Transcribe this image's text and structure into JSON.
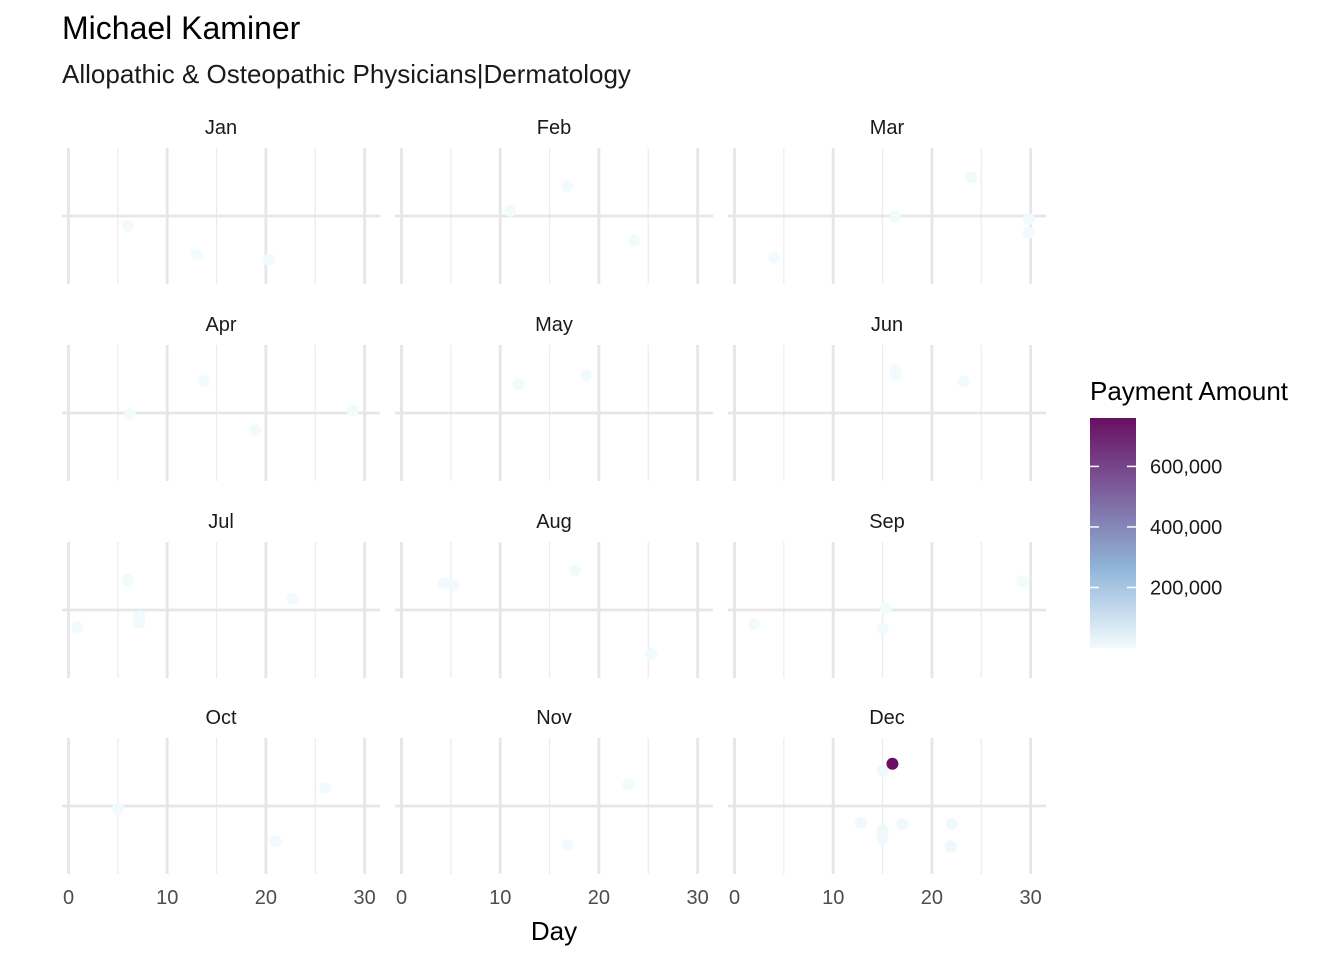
{
  "chart_data": {
    "type": "scatter",
    "title": "Michael Kaminer",
    "subtitle": "Allopathic & Osteopathic Physicians|Dermatology",
    "xlabel": "Day",
    "ylabel": "",
    "xlim": [
      0,
      31
    ],
    "x_ticks": [
      0,
      10,
      20,
      30
    ],
    "x_tick_labels": [
      "0",
      "10",
      "20",
      "30"
    ],
    "grid": true,
    "facet_layout": {
      "rows": 4,
      "cols": 3
    },
    "color_scale": {
      "title": "Payment Amount",
      "low_color": "#f2fbfd",
      "mid_color": "#8fb4d9",
      "high_color": "#6a0f62",
      "range": [
        0,
        760000
      ],
      "breaks": [
        200000,
        400000,
        600000
      ],
      "break_labels": [
        "200,000",
        "400,000",
        "600,000"
      ],
      "legend_position": "right"
    },
    "facets": [
      {
        "month": "Jan",
        "points": [
          {
            "day": 6,
            "y": -0.15,
            "amount": 1500
          },
          {
            "day": 13,
            "y": -0.6,
            "amount": 1200
          },
          {
            "day": 20.3,
            "y": -0.68,
            "amount": 1500
          }
        ]
      },
      {
        "month": "Feb",
        "points": [
          {
            "day": 11,
            "y": 0.08,
            "amount": 1500
          },
          {
            "day": 16.8,
            "y": 0.47,
            "amount": 1500
          },
          {
            "day": 23.6,
            "y": -0.38,
            "amount": 1500
          }
        ]
      },
      {
        "month": "Mar",
        "points": [
          {
            "day": 4,
            "y": -0.65,
            "amount": 1500
          },
          {
            "day": 16.3,
            "y": -0.01,
            "amount": 1500
          },
          {
            "day": 24,
            "y": 0.6,
            "amount": 1500
          },
          {
            "day": 29.8,
            "y": -0.05,
            "amount": 1500
          },
          {
            "day": 29.8,
            "y": -0.26,
            "amount": 1500
          }
        ]
      },
      {
        "month": "Apr",
        "points": [
          {
            "day": 6.2,
            "y": -0.02,
            "amount": 1500
          },
          {
            "day": 13.7,
            "y": 0.5,
            "amount": 1500
          },
          {
            "day": 18.9,
            "y": -0.27,
            "amount": 1500
          },
          {
            "day": 28.8,
            "y": 0.04,
            "amount": 1500
          }
        ]
      },
      {
        "month": "May",
        "points": [
          {
            "day": 11.9,
            "y": 0.45,
            "amount": 1500
          },
          {
            "day": 18.7,
            "y": 0.59,
            "amount": 1500
          }
        ]
      },
      {
        "month": "Jun",
        "points": [
          {
            "day": 16.3,
            "y": 0.67,
            "amount": 1500
          },
          {
            "day": 16.3,
            "y": 0.6,
            "amount": 1500
          },
          {
            "day": 23.2,
            "y": 0.49,
            "amount": 1500
          }
        ]
      },
      {
        "month": "Jul",
        "points": [
          {
            "day": 0.9,
            "y": -0.27,
            "amount": 1500
          },
          {
            "day": 6,
            "y": 0.47,
            "amount": 1500
          },
          {
            "day": 7.2,
            "y": -0.1,
            "amount": 1500
          },
          {
            "day": 7.2,
            "y": -0.2,
            "amount": 1500
          },
          {
            "day": 22.7,
            "y": 0.18,
            "amount": 1500
          }
        ]
      },
      {
        "month": "Aug",
        "points": [
          {
            "day": 4.3,
            "y": 0.42,
            "amount": 1500
          },
          {
            "day": 5.3,
            "y": 0.38,
            "amount": 1500
          },
          {
            "day": 17.6,
            "y": 0.62,
            "amount": 1500
          },
          {
            "day": 25.3,
            "y": -0.69,
            "amount": 1500
          }
        ]
      },
      {
        "month": "Sep",
        "points": [
          {
            "day": 2,
            "y": -0.22,
            "amount": 1500
          },
          {
            "day": 15,
            "y": -0.29,
            "amount": 1500
          },
          {
            "day": 15.3,
            "y": 0.03,
            "amount": 1500
          },
          {
            "day": 29.2,
            "y": 0.45,
            "amount": 1500
          }
        ]
      },
      {
        "month": "Oct",
        "points": [
          {
            "day": 5,
            "y": -0.04,
            "amount": 1500
          },
          {
            "day": 21,
            "y": -0.55,
            "amount": 1500
          },
          {
            "day": 26,
            "y": 0.28,
            "amount": 1500
          }
        ]
      },
      {
        "month": "Nov",
        "points": [
          {
            "day": 16.8,
            "y": -0.61,
            "amount": 1500
          },
          {
            "day": 23,
            "y": 0.34,
            "amount": 1500
          }
        ]
      },
      {
        "month": "Dec",
        "points": [
          {
            "day": 15,
            "y": 0.55,
            "amount": 8000
          },
          {
            "day": 16,
            "y": 0.66,
            "amount": 760000
          },
          {
            "day": 12.8,
            "y": -0.26,
            "amount": 8000
          },
          {
            "day": 15,
            "y": -0.38,
            "amount": 8000
          },
          {
            "day": 15,
            "y": -0.51,
            "amount": 8000
          },
          {
            "day": 17,
            "y": -0.29,
            "amount": 8000
          },
          {
            "day": 22,
            "y": -0.28,
            "amount": 8000
          },
          {
            "day": 21.9,
            "y": -0.63,
            "amount": 8000
          }
        ]
      }
    ]
  }
}
